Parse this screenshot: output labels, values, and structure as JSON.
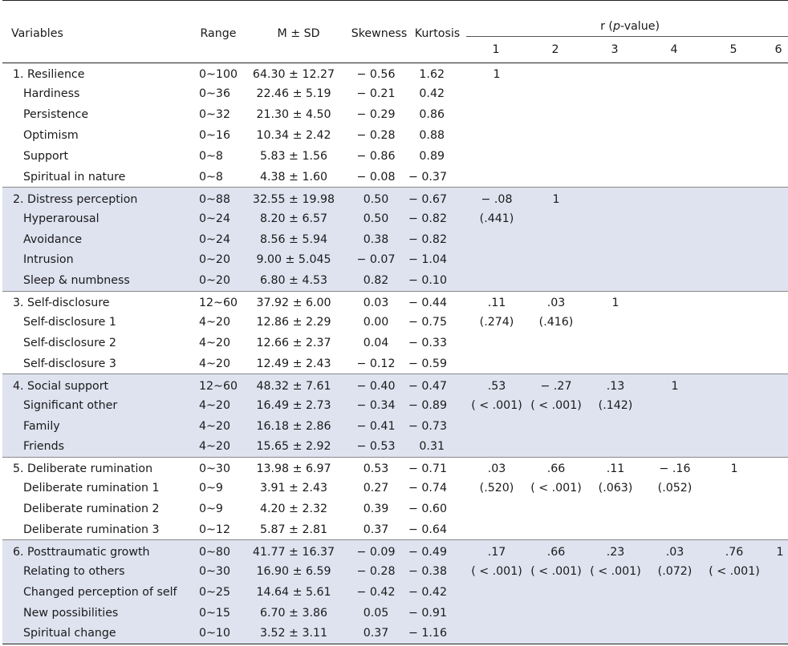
{
  "headers": {
    "variables": "Variables",
    "range": "Range",
    "msd": "M ± SD",
    "skewness": "Skewness",
    "kurtosis": "Kurtosis",
    "r_prefix": "r (",
    "r_italic": "p",
    "r_suffix": "-value)",
    "cols": [
      "1",
      "2",
      "3",
      "4",
      "5",
      "6"
    ]
  },
  "rows": [
    {
      "name": "1. Resilience",
      "range": "0~100",
      "msd": "64.30 ± 12.27",
      "sk": "− 0.56",
      "ku": "1.62",
      "r": [
        "1",
        "",
        "",
        "",
        "",
        ""
      ]
    },
    {
      "name": "Hardiness",
      "range": "0~36",
      "msd": "22.46 ± 5.19",
      "sk": "− 0.21",
      "ku": "0.42",
      "r": [
        "",
        "",
        "",
        "",
        "",
        ""
      ]
    },
    {
      "name": "Persistence",
      "range": "0~32",
      "msd": "21.30 ± 4.50",
      "sk": "− 0.29",
      "ku": "0.86",
      "r": [
        "",
        "",
        "",
        "",
        "",
        ""
      ]
    },
    {
      "name": "Optimism",
      "range": "0~16",
      "msd": "10.34 ± 2.42",
      "sk": "− 0.28",
      "ku": "0.88",
      "r": [
        "",
        "",
        "",
        "",
        "",
        ""
      ]
    },
    {
      "name": "Support",
      "range": "0~8",
      "msd": "5.83 ± 1.56",
      "sk": "− 0.86",
      "ku": "0.89",
      "r": [
        "",
        "",
        "",
        "",
        "",
        ""
      ]
    },
    {
      "name": "Spiritual in nature",
      "range": "0~8",
      "msd": "4.38 ± 1.60",
      "sk": "− 0.08",
      "ku": "− 0.37",
      "r": [
        "",
        "",
        "",
        "",
        "",
        ""
      ]
    },
    {
      "name": "2. Distress perception",
      "range": "0~88",
      "msd": "32.55 ± 19.98",
      "sk": "0.50",
      "ku": "− 0.67",
      "r": [
        "− .08",
        "1",
        "",
        "",
        "",
        ""
      ]
    },
    {
      "name": "Hyperarousal",
      "range": "0~24",
      "msd": "8.20 ± 6.57",
      "sk": "0.50",
      "ku": "− 0.82",
      "r": [
        "(.441)",
        "",
        "",
        "",
        "",
        ""
      ]
    },
    {
      "name": "Avoidance",
      "range": "0~24",
      "msd": "8.56 ± 5.94",
      "sk": "0.38",
      "ku": "− 0.82",
      "r": [
        "",
        "",
        "",
        "",
        "",
        ""
      ]
    },
    {
      "name": "Intrusion",
      "range": "0~20",
      "msd": "9.00 ± 5.045",
      "sk": "− 0.07",
      "ku": "− 1.04",
      "r": [
        "",
        "",
        "",
        "",
        "",
        ""
      ]
    },
    {
      "name": "Sleep & numbness",
      "range": "0~20",
      "msd": "6.80 ± 4.53",
      "sk": "0.82",
      "ku": "− 0.10",
      "r": [
        "",
        "",
        "",
        "",
        "",
        ""
      ]
    },
    {
      "name": "3. Self-disclosure",
      "range": "12~60",
      "msd": "37.92 ± 6.00",
      "sk": "0.03",
      "ku": "− 0.44",
      "r": [
        ".11",
        ".03",
        "1",
        "",
        "",
        ""
      ]
    },
    {
      "name": "Self-disclosure 1",
      "range": "4~20",
      "msd": "12.86 ± 2.29",
      "sk": "0.00",
      "ku": "− 0.75",
      "r": [
        "(.274)",
        "(.416)",
        "",
        "",
        "",
        ""
      ]
    },
    {
      "name": "Self-disclosure 2",
      "range": "4~20",
      "msd": "12.66 ± 2.37",
      "sk": "0.04",
      "ku": "− 0.33",
      "r": [
        "",
        "",
        "",
        "",
        "",
        ""
      ]
    },
    {
      "name": "Self-disclosure 3",
      "range": "4~20",
      "msd": "12.49 ± 2.43",
      "sk": "− 0.12",
      "ku": "− 0.59",
      "r": [
        "",
        "",
        "",
        "",
        "",
        ""
      ]
    },
    {
      "name": "4. Social support",
      "range": "12~60",
      "msd": "48.32 ± 7.61",
      "sk": "− 0.40",
      "ku": "− 0.47",
      "r": [
        ".53",
        "− .27",
        ".13",
        "1",
        "",
        ""
      ]
    },
    {
      "name": "Significant other",
      "range": "4~20",
      "msd": "16.49 ± 2.73",
      "sk": "− 0.34",
      "ku": "− 0.89",
      "r": [
        "( < .001)",
        "( < .001)",
        "(.142)",
        "",
        "",
        ""
      ]
    },
    {
      "name": "Family",
      "range": "4~20",
      "msd": "16.18 ± 2.86",
      "sk": "− 0.41",
      "ku": "− 0.73",
      "r": [
        "",
        "",
        "",
        "",
        "",
        ""
      ]
    },
    {
      "name": "Friends",
      "range": "4~20",
      "msd": "15.65 ± 2.92",
      "sk": "− 0.53",
      "ku": "0.31",
      "r": [
        "",
        "",
        "",
        "",
        "",
        ""
      ]
    },
    {
      "name": "5. Deliberate rumination",
      "range": "0~30",
      "msd": "13.98 ± 6.97",
      "sk": "0.53",
      "ku": "− 0.71",
      "r": [
        ".03",
        ".66",
        ".11",
        "− .16",
        "1",
        ""
      ]
    },
    {
      "name": "Deliberate rumination 1",
      "range": "0~9",
      "msd": "3.91 ± 2.43",
      "sk": "0.27",
      "ku": "− 0.74",
      "r": [
        "(.520)",
        "( < .001)",
        "(.063)",
        "(.052)",
        "",
        ""
      ]
    },
    {
      "name": "Deliberate rumination 2",
      "range": "0~9",
      "msd": "4.20 ± 2.32",
      "sk": "0.39",
      "ku": "− 0.60",
      "r": [
        "",
        "",
        "",
        "",
        "",
        ""
      ]
    },
    {
      "name": "Deliberate rumination 3",
      "range": "0~12",
      "msd": "5.87 ± 2.81",
      "sk": "0.37",
      "ku": "− 0.64",
      "r": [
        "",
        "",
        "",
        "",
        "",
        ""
      ]
    },
    {
      "name": "6. Posttraumatic growth",
      "range": "0~80",
      "msd": "41.77 ± 16.37",
      "sk": "− 0.09",
      "ku": "− 0.49",
      "r": [
        ".17",
        ".66",
        ".23",
        ".03",
        ".76",
        "1"
      ]
    },
    {
      "name": "Relating to others",
      "range": "0~30",
      "msd": "16.90 ± 6.59",
      "sk": "− 0.28",
      "ku": "− 0.38",
      "r": [
        "( < .001)",
        "( < .001)",
        "( < .001)",
        "(.072)",
        "( < .001)",
        ""
      ]
    },
    {
      "name": "Changed perception of self",
      "range": "0~25",
      "msd": "14.64 ± 5.61",
      "sk": "− 0.42",
      "ku": "− 0.42",
      "r": [
        "",
        "",
        "",
        "",
        "",
        ""
      ]
    },
    {
      "name": "New possibilities",
      "range": "0~15",
      "msd": "6.70 ± 3.86",
      "sk": "0.05",
      "ku": "− 0.91",
      "r": [
        "",
        "",
        "",
        "",
        "",
        ""
      ]
    },
    {
      "name": "Spiritual change",
      "range": "0~10",
      "msd": "3.52 ± 3.11",
      "sk": "0.37",
      "ku": "− 1.16",
      "r": [
        "",
        "",
        "",
        "",
        "",
        ""
      ]
    }
  ]
}
